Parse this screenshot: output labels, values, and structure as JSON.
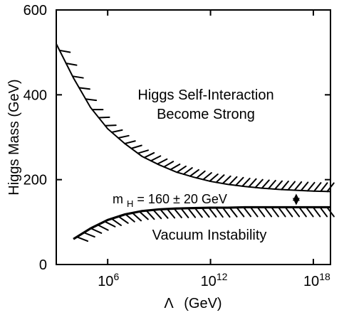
{
  "chart_data": {
    "type": "line",
    "title": "",
    "xlabel_symbol": "Λ",
    "xlabel_unit": "(GeV)",
    "ylabel": "Higgs Mass (GeV)",
    "x_scale": "log10",
    "xlim": [
      1000,
      10000000000000000000
    ],
    "ylim": [
      0,
      600
    ],
    "grid": false,
    "x_ticks": [
      {
        "value": 1000000,
        "label_base": "10",
        "label_exp": "6"
      },
      {
        "value": 1000000000000,
        "label_base": "10",
        "label_exp": "12"
      },
      {
        "value": 1000000000000000000,
        "label_base": "10",
        "label_exp": "18"
      }
    ],
    "y_ticks": [
      0,
      200,
      400,
      600
    ],
    "series": [
      {
        "x": [
          1000,
          10000,
          100000,
          1000000,
          10000000,
          100000000,
          1000000000,
          10000000000,
          100000000000,
          1000000000000,
          10000000000000,
          100000000000000,
          1000000000000000,
          10000000000000000,
          100000000000000000,
          1000000000000000000,
          10000000000000000000
        ],
        "y": [
          520,
          440,
          370,
          320,
          285,
          255,
          235,
          218,
          206,
          196,
          189,
          184,
          180,
          177,
          175,
          173,
          172
        ]
      },
      {
        "x": [
          10000,
          100000,
          1000000,
          10000000,
          100000000,
          1000000000,
          10000000000,
          100000000000,
          1000000000000,
          10000000000000,
          100000000000000,
          1000000000000000,
          10000000000000000,
          100000000000000000,
          1000000000000000000,
          10000000000000000000
        ],
        "y": [
          60,
          85,
          105,
          118,
          126,
          130,
          132,
          133,
          134,
          134,
          135,
          135,
          135,
          135,
          135,
          135
        ]
      }
    ],
    "annotations": {
      "upper_region_line1": "Higgs Self-Interaction",
      "upper_region_line2": "Become Strong",
      "lower_region": "Vacuum Instability",
      "mass_base": "m",
      "mass_sub": "H",
      "mass_rest": " = 160 ± 20 GeV"
    }
  }
}
